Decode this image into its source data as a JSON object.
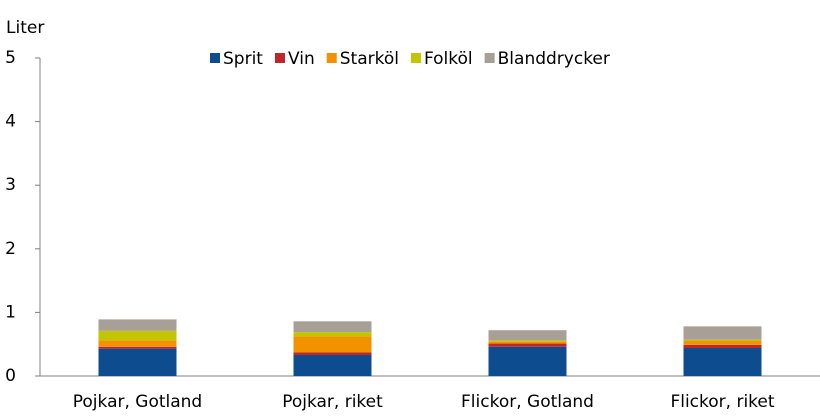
{
  "chart_data": {
    "type": "stacked_bar",
    "y_label": "Liter",
    "categories": [
      "Pojkar, Gotland",
      "Pojkar, riket",
      "Flickor, Gotland",
      "Flickor, riket"
    ],
    "series": [
      {
        "name": "Sprit",
        "color": "#0d4c8f",
        "values": [
          0.43,
          0.33,
          0.46,
          0.44
        ]
      },
      {
        "name": "Vin",
        "color": "#c0272d",
        "values": [
          0.03,
          0.04,
          0.05,
          0.05
        ]
      },
      {
        "name": "Starköl",
        "color": "#f39200",
        "values": [
          0.1,
          0.25,
          0.03,
          0.06
        ]
      },
      {
        "name": "Folköl",
        "color": "#c2c500",
        "values": [
          0.15,
          0.07,
          0.02,
          0.02
        ]
      },
      {
        "name": "Blanddrycker",
        "color": "#a89f97",
        "values": [
          0.18,
          0.17,
          0.16,
          0.21
        ]
      }
    ],
    "ylim": [
      0,
      5
    ],
    "yticks": [
      0,
      1,
      2,
      3,
      4,
      5
    ],
    "legend": "top"
  }
}
